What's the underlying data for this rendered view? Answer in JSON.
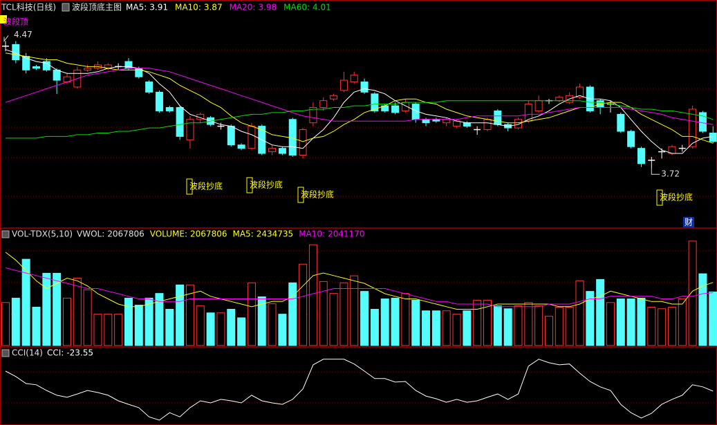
{
  "chart_data": [
    {
      "type": "candlestick",
      "title": "TCL科技(日线)",
      "subtitle": "波段顶底主图",
      "top_label": "波段顶",
      "badge": "财",
      "annotations": [
        "波段抄底",
        "波段抄底",
        "波段抄底",
        "波段抄底"
      ],
      "up_color": "#ff3232",
      "down_color": "#54fcfc",
      "flat_color": "#ffffff",
      "ylim": [
        3.38,
        4.63
      ],
      "open": [
        4.44,
        4.45,
        4.38,
        4.32,
        4.35,
        4.3,
        4.23,
        4.2,
        4.3,
        4.31,
        4.31,
        4.32,
        4.35,
        4.31,
        4.23,
        4.17,
        4.08,
        4.08,
        3.89,
        4.01,
        4.02,
        3.97,
        3.97,
        3.86,
        3.84,
        3.97,
        3.82,
        3.84,
        4.01,
        3.8,
        3.99,
        4.08,
        4.13,
        4.18,
        4.23,
        4.23,
        4.16,
        4.09,
        4.09,
        4.06,
        4.1,
        4.01,
        4.01,
        3.99,
        3.97,
        3.99,
        3.95,
        3.95,
        4.06,
        3.98,
        3.96,
        4.0,
        4.06,
        4.12,
        4.12,
        4.11,
        4.14,
        4.2,
        4.12,
        4.1,
        4.04,
        3.94,
        3.84,
        3.77,
        3.82,
        3.81,
        3.84,
        3.85,
        4.05,
        3.93
      ],
      "high": [
        4.47,
        4.47,
        4.4,
        4.33,
        4.37,
        4.31,
        4.28,
        4.32,
        4.33,
        4.35,
        4.34,
        4.34,
        4.37,
        4.32,
        4.24,
        4.18,
        4.09,
        4.09,
        4.03,
        4.05,
        4.03,
        3.99,
        3.98,
        3.87,
        3.99,
        3.98,
        3.86,
        3.85,
        4.02,
        3.96,
        4.11,
        4.14,
        4.16,
        4.29,
        4.29,
        4.25,
        4.17,
        4.1,
        4.11,
        4.13,
        4.11,
        4.02,
        4.02,
        4.02,
        4.01,
        4.0,
        3.97,
        4.02,
        4.07,
        3.99,
        4.02,
        4.12,
        4.15,
        4.13,
        4.15,
        4.17,
        4.22,
        4.21,
        4.13,
        4.12,
        4.05,
        3.95,
        3.85,
        3.79,
        3.84,
        3.86,
        3.86,
        4.09,
        4.06,
        3.97
      ],
      "low": [
        4.41,
        4.34,
        4.28,
        4.3,
        4.29,
        4.16,
        4.22,
        4.19,
        4.29,
        4.3,
        4.3,
        4.3,
        4.3,
        4.25,
        4.16,
        4.05,
        4.05,
        3.89,
        3.84,
        3.99,
        3.97,
        3.95,
        3.85,
        3.83,
        3.83,
        3.8,
        3.8,
        3.8,
        3.79,
        3.78,
        3.97,
        4.06,
        4.12,
        4.17,
        4.22,
        4.16,
        4.05,
        4.05,
        4.04,
        4.05,
        3.99,
        3.97,
        3.99,
        3.97,
        3.96,
        3.96,
        3.92,
        3.94,
        3.97,
        3.94,
        3.95,
        3.99,
        4.05,
        4.1,
        4.11,
        4.1,
        4.13,
        4.05,
        4.04,
        4.05,
        3.93,
        3.84,
        3.73,
        3.72,
        3.78,
        3.8,
        3.82,
        3.84,
        3.93,
        3.87
      ],
      "close": [
        4.44,
        4.36,
        4.3,
        4.31,
        4.3,
        4.24,
        4.26,
        4.3,
        4.31,
        4.33,
        4.33,
        4.32,
        4.31,
        4.26,
        4.17,
        4.06,
        4.06,
        3.91,
        4.01,
        4.04,
        3.98,
        3.97,
        3.86,
        3.84,
        3.97,
        3.81,
        3.84,
        3.81,
        3.8,
        3.95,
        4.08,
        4.12,
        4.15,
        4.24,
        4.27,
        4.17,
        4.06,
        4.06,
        4.05,
        4.11,
        4.01,
        3.99,
        4.0,
        4.01,
        4.0,
        3.97,
        3.95,
        4.01,
        3.98,
        3.96,
        4.01,
        4.1,
        4.12,
        4.12,
        4.14,
        4.15,
        4.2,
        4.06,
        4.08,
        4.1,
        3.94,
        3.85,
        3.75,
        3.77,
        3.82,
        3.85,
        3.84,
        4.07,
        3.94,
        3.88
      ],
      "lines": [
        {
          "name": "MA5:",
          "color": "#ffffff",
          "values": [
            4.42,
            4.4,
            4.37,
            4.35,
            4.34,
            4.3,
            4.28,
            4.28,
            4.28,
            4.29,
            4.31,
            4.32,
            4.32,
            4.31,
            4.28,
            4.22,
            4.17,
            4.09,
            4.04,
            4.02,
            4.0,
            3.98,
            3.97,
            3.94,
            3.92,
            3.89,
            3.86,
            3.85,
            3.85,
            3.84,
            3.9,
            3.95,
            4.02,
            4.11,
            4.17,
            4.19,
            4.18,
            4.16,
            4.12,
            4.09,
            4.06,
            4.04,
            4.03,
            4.02,
            4.0,
            3.99,
            3.99,
            3.99,
            3.98,
            3.97,
            3.98,
            4.01,
            4.03,
            4.06,
            4.1,
            4.13,
            4.15,
            4.13,
            4.13,
            4.12,
            4.08,
            4.01,
            3.94,
            3.88,
            3.83,
            3.81,
            3.81,
            3.87,
            3.9,
            3.91
          ]
        },
        {
          "name": "MA10:",
          "color": "#ffff00",
          "values": [
            4.4,
            4.39,
            4.38,
            4.37,
            4.36,
            4.36,
            4.34,
            4.33,
            4.32,
            4.32,
            4.31,
            4.3,
            4.3,
            4.3,
            4.29,
            4.27,
            4.25,
            4.21,
            4.18,
            4.15,
            4.11,
            4.08,
            4.03,
            3.99,
            3.97,
            3.95,
            3.92,
            3.91,
            3.9,
            3.88,
            3.9,
            3.91,
            3.94,
            3.98,
            4.01,
            4.05,
            4.07,
            4.09,
            4.12,
            4.13,
            4.13,
            4.11,
            4.1,
            4.07,
            4.05,
            4.03,
            4.02,
            4.01,
            4.0,
            3.99,
            3.99,
            4.0,
            4.01,
            4.02,
            4.04,
            4.06,
            4.08,
            4.08,
            4.1,
            4.11,
            4.11,
            4.08,
            4.04,
            4.01,
            3.98,
            3.95,
            3.91,
            3.91,
            3.89,
            3.87
          ]
        },
        {
          "name": "MA20:",
          "color": "#ff00ff",
          "values": [
            4.11,
            4.13,
            4.15,
            4.17,
            4.19,
            4.21,
            4.23,
            4.25,
            4.27,
            4.28,
            4.29,
            4.3,
            4.31,
            4.31,
            4.31,
            4.3,
            4.29,
            4.27,
            4.25,
            4.23,
            4.21,
            4.19,
            4.17,
            4.15,
            4.13,
            4.11,
            4.09,
            4.07,
            4.05,
            4.03,
            4.02,
            4.01,
            4.0,
            4.0,
            4.0,
            4.0,
            4.0,
            4.0,
            4.0,
            4.0,
            4.01,
            4.01,
            4.01,
            4.01,
            4.01,
            4.02,
            4.03,
            4.03,
            4.03,
            4.03,
            4.03,
            4.04,
            4.04,
            4.05,
            4.06,
            4.07,
            4.08,
            4.08,
            4.08,
            4.08,
            4.08,
            4.07,
            4.06,
            4.05,
            4.04,
            4.02,
            4.01,
            4.0,
            3.99,
            3.98
          ]
        },
        {
          "name": "MA60:",
          "color": "#00e000",
          "values": [
            3.9,
            3.9,
            3.9,
            3.9,
            3.91,
            3.91,
            3.91,
            3.92,
            3.92,
            3.93,
            3.93,
            3.94,
            3.94,
            3.95,
            3.96,
            3.96,
            3.97,
            3.98,
            3.99,
            3.99,
            4.0,
            4.01,
            4.02,
            4.03,
            4.04,
            4.04,
            4.05,
            4.05,
            4.06,
            4.06,
            4.07,
            4.07,
            4.08,
            4.08,
            4.09,
            4.09,
            4.1,
            4.1,
            4.1,
            4.11,
            4.11,
            4.11,
            4.11,
            4.12,
            4.12,
            4.12,
            4.12,
            4.12,
            4.12,
            4.12,
            4.12,
            4.12,
            4.12,
            4.12,
            4.12,
            4.12,
            4.12,
            4.11,
            4.11,
            4.1,
            4.09,
            4.08,
            4.07,
            4.07,
            4.06,
            4.06,
            4.05,
            4.04,
            4.03,
            4.01
          ]
        }
      ]
    },
    {
      "type": "bar",
      "title": "VOL-TDX(5,10)",
      "vwol_label": "VWOL:",
      "ylim": [
        0,
        4400000
      ],
      "series": [
        {
          "name": "VOLUME:",
          "color": "#ffff00",
          "values": [
            1660000,
            1830000,
            3330000,
            1480000,
            2790000,
            2790000,
            1830000,
            2600000,
            2150000,
            1210000,
            1210000,
            1210000,
            1830000,
            1560000,
            1830000,
            2010000,
            1400000,
            2340000,
            2340000,
            1530000,
            1260000,
            1260000,
            1400000,
            1070000,
            2420000,
            1880000,
            1610000,
            1210000,
            2420000,
            3140000,
            3890000,
            2470000,
            2010000,
            2420000,
            2690000,
            2090000,
            1400000,
            1800000,
            1830000,
            2010000,
            1750000,
            1340000,
            1340000,
            1340000,
            1210000,
            1340000,
            1750000,
            1750000,
            1530000,
            1420000,
            1530000,
            1660000,
            1530000,
            1130000,
            1480000,
            1480000,
            2500000,
            2090000,
            2550000,
            1660000,
            1800000,
            1800000,
            1830000,
            1480000,
            1420000,
            1480000,
            1800000,
            4030000,
            2770000,
            2067806
          ]
        },
        {
          "name": "MA5:",
          "color": "#ffff00",
          "values": [
            3600000,
            3300000,
            2900000,
            2500000,
            2200000,
            2400000,
            2600000,
            2500000,
            2300000,
            2000000,
            1800000,
            1600000,
            1500000,
            1500000,
            1600000,
            1700000,
            1800000,
            1900000,
            2000000,
            2100000,
            1900000,
            1800000,
            1700000,
            1600000,
            1500000,
            1600000,
            1700000,
            1700000,
            1900000,
            2300000,
            2700000,
            2800000,
            2700000,
            2600000,
            2500000,
            2400000,
            2200000,
            2000000,
            1900000,
            1800000,
            1800000,
            1700000,
            1600000,
            1500000,
            1400000,
            1400000,
            1400000,
            1500000,
            1600000,
            1600000,
            1600000,
            1600000,
            1600000,
            1600000,
            1500000,
            1500000,
            1600000,
            1800000,
            1900000,
            2100000,
            2000000,
            1900000,
            1800000,
            1700000,
            1700000,
            1600000,
            1600000,
            2100000,
            2300000,
            2434735
          ]
        },
        {
          "name": "MA10:",
          "color": "#ff00ff",
          "values": [
            3000000,
            2900000,
            2800000,
            2700000,
            2600000,
            2500000,
            2400000,
            2300000,
            2200000,
            2200000,
            2100000,
            2000000,
            1900000,
            1800000,
            1800000,
            1700000,
            1700000,
            1700000,
            1800000,
            1800000,
            1800000,
            1800000,
            1800000,
            1800000,
            1800000,
            1800000,
            1800000,
            1800000,
            1800000,
            1900000,
            2000000,
            2100000,
            2200000,
            2200000,
            2200000,
            2200000,
            2200000,
            2200000,
            2100000,
            2000000,
            1900000,
            1800000,
            1700000,
            1700000,
            1600000,
            1600000,
            1600000,
            1600000,
            1500000,
            1500000,
            1500000,
            1500000,
            1500000,
            1600000,
            1600000,
            1600000,
            1700000,
            1800000,
            1800000,
            1900000,
            1900000,
            1900000,
            1900000,
            1900000,
            1800000,
            1800000,
            1900000,
            1900000,
            2000000,
            2041170
          ]
        }
      ]
    },
    {
      "type": "line",
      "title": "CCI(14)",
      "ylim": [
        -183,
        156
      ],
      "series": [
        {
          "name": "CCI:",
          "color": "#ffffff",
          "values": [
            73,
            47,
            13,
            7,
            -20,
            -43,
            -53,
            -37,
            -20,
            -30,
            -43,
            -70,
            -87,
            -103,
            -147,
            -163,
            -127,
            -147,
            -103,
            -70,
            -80,
            -63,
            -70,
            -80,
            -43,
            -70,
            -80,
            -87,
            -63,
            -13,
            103,
            130,
            130,
            130,
            107,
            73,
            37,
            37,
            20,
            23,
            -20,
            -47,
            -60,
            -77,
            -63,
            -77,
            -70,
            -53,
            -37,
            -63,
            -37,
            97,
            130,
            113,
            103,
            107,
            63,
            23,
            -3,
            -20,
            -87,
            -127,
            -153,
            -130,
            -87,
            -63,
            -43,
            7,
            -3,
            -23.55
          ]
        }
      ]
    }
  ]
}
